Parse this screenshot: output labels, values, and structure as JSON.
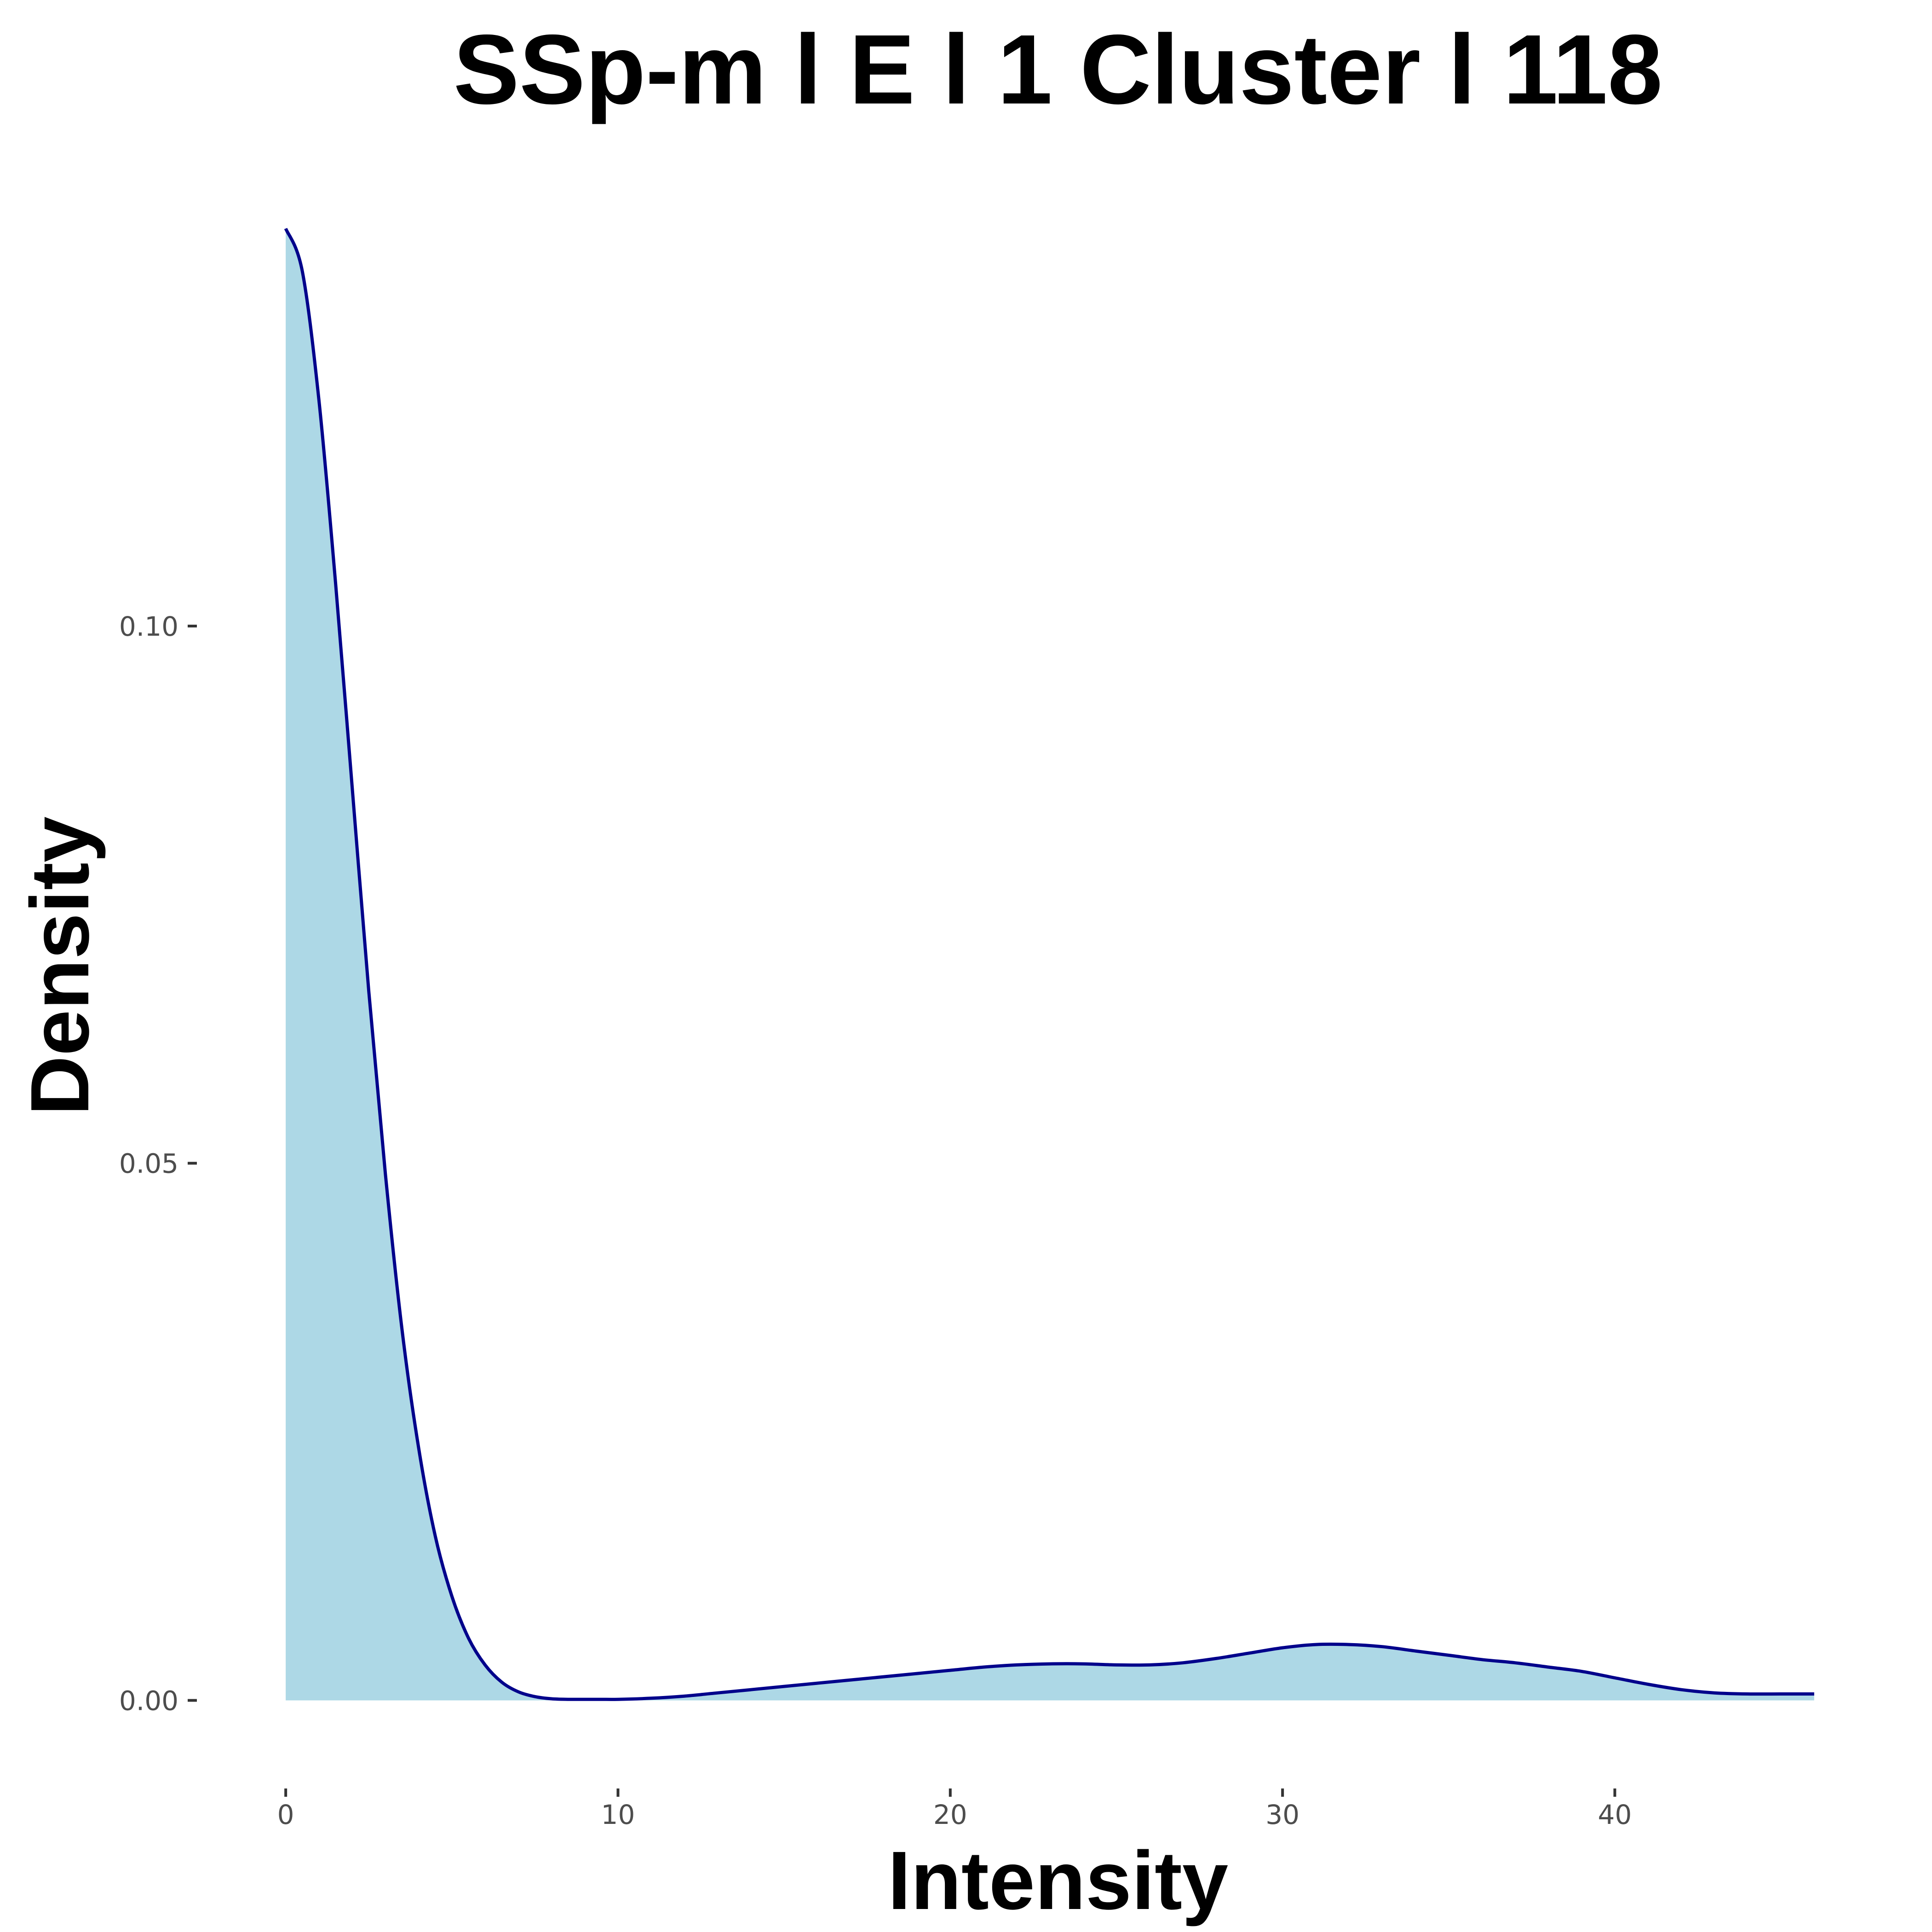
{
  "chart_data": {
    "type": "area",
    "title": "SSp-m l E l 1 Cluster l  118",
    "xlabel": "Intensity",
    "ylabel": "Density",
    "xlim": [
      -2.3,
      48.3
    ],
    "ylim": [
      -0.007,
      0.142
    ],
    "x_ticks": [
      {
        "value": 0,
        "label": "0"
      },
      {
        "value": 10,
        "label": "10"
      },
      {
        "value": 20,
        "label": "20"
      },
      {
        "value": 30,
        "label": "30"
      },
      {
        "value": 40,
        "label": "40"
      }
    ],
    "y_ticks": [
      {
        "value": 0.0,
        "label": "0.00"
      },
      {
        "value": 0.05,
        "label": "0.05"
      },
      {
        "value": 0.1,
        "label": "0.10"
      }
    ],
    "grid": false,
    "legend": "none",
    "fill_color": "#add8e6",
    "line_color": "#00008b",
    "series": [
      {
        "x": [
          0,
          0.5,
          1,
          1.5,
          2,
          2.5,
          3,
          3.5,
          4,
          4.5,
          5,
          5.5,
          6,
          6.5,
          7,
          7.5,
          8,
          8.5,
          9,
          9.5,
          10,
          11,
          12,
          13,
          14,
          15,
          16,
          17,
          18,
          19,
          20,
          21,
          22,
          23,
          24,
          25,
          26,
          27,
          28,
          29,
          30,
          31,
          32,
          33,
          34,
          35,
          36,
          37,
          38,
          39,
          40,
          41,
          42,
          43,
          44,
          45,
          46
        ],
        "y": [
          0.137,
          0.133,
          0.121,
          0.104,
          0.085,
          0.066,
          0.049,
          0.0345,
          0.0235,
          0.0153,
          0.0097,
          0.0058,
          0.0033,
          0.0017,
          0.0008,
          0.00035,
          0.00015,
          0.0001,
          0.0001,
          0.0001,
          0.0001,
          0.0002,
          0.0004,
          0.0007,
          0.001,
          0.0013,
          0.0016,
          0.0019,
          0.0022,
          0.0025,
          0.0028,
          0.0031,
          0.0033,
          0.0034,
          0.0034,
          0.0033,
          0.0033,
          0.0035,
          0.0039,
          0.0044,
          0.0049,
          0.0052,
          0.0052,
          0.005,
          0.0046,
          0.0042,
          0.0038,
          0.0035,
          0.0031,
          0.0027,
          0.0021,
          0.0015,
          0.001,
          0.0007,
          0.0006,
          0.0006,
          0.0006
        ]
      }
    ]
  }
}
